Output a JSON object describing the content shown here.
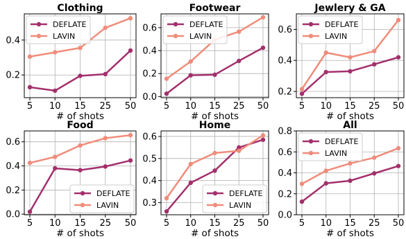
{
  "colors": {
    "DEFLATE": "#a3306c",
    "LAVIN": "#f08c7a"
  },
  "chart_data": [
    {
      "type": "line",
      "title": "Clothing",
      "xlabel": "# of shots",
      "x": [
        "5",
        "10",
        "15",
        "25",
        "50"
      ],
      "ylim": [
        0.07,
        0.55
      ],
      "yticks": [
        0.2,
        0.4
      ],
      "ytick_labels": [
        "0.2",
        "0.4"
      ],
      "legend": "upper-left",
      "series": [
        {
          "name": "DEFLATE",
          "values": [
            0.13,
            0.11,
            0.195,
            0.205,
            0.34
          ]
        },
        {
          "name": "LAVIN",
          "values": [
            0.305,
            0.33,
            0.355,
            0.47,
            0.525
          ]
        }
      ]
    },
    {
      "type": "line",
      "title": "Footwear",
      "xlabel": "# of shots",
      "x": [
        "5",
        "10",
        "15",
        "25",
        "50"
      ],
      "ylim": [
        -0.01,
        0.72
      ],
      "yticks": [
        0.0,
        0.2,
        0.4,
        0.6
      ],
      "ytick_labels": [
        "0.0",
        "0.2",
        "0.4",
        "0.6"
      ],
      "legend": "upper-left",
      "series": [
        {
          "name": "DEFLATE",
          "values": [
            0.025,
            0.185,
            0.19,
            0.31,
            0.425
          ]
        },
        {
          "name": "LAVIN",
          "values": [
            0.155,
            0.305,
            0.495,
            0.565,
            0.69
          ]
        }
      ]
    },
    {
      "type": "line",
      "title": "Jewlery & GA",
      "xlabel": "# of shots",
      "x": [
        "5",
        "10",
        "15",
        "25",
        "50"
      ],
      "ylim": [
        0.16,
        0.7
      ],
      "yticks": [
        0.2,
        0.4,
        0.6
      ],
      "ytick_labels": [
        "0.2",
        "0.4",
        "0.6"
      ],
      "legend": "upper-left",
      "series": [
        {
          "name": "DEFLATE",
          "values": [
            0.185,
            0.325,
            0.33,
            0.375,
            0.42
          ]
        },
        {
          "name": "LAVIN",
          "values": [
            0.215,
            0.45,
            0.42,
            0.46,
            0.66
          ]
        }
      ]
    },
    {
      "type": "line",
      "title": "Food",
      "xlabel": "# of shots",
      "x": [
        "5",
        "10",
        "15",
        "25",
        "50"
      ],
      "ylim": [
        -0.005,
        0.69
      ],
      "yticks": [
        0.0,
        0.2,
        0.4,
        0.6
      ],
      "ytick_labels": [
        "0.0",
        "0.2",
        "0.4",
        "0.6"
      ],
      "legend": "lower-right",
      "series": [
        {
          "name": "DEFLATE",
          "values": [
            0.02,
            0.38,
            0.365,
            0.395,
            0.445
          ]
        },
        {
          "name": "LAVIN",
          "values": [
            0.425,
            0.475,
            0.57,
            0.63,
            0.655
          ]
        }
      ]
    },
    {
      "type": "line",
      "title": "Home",
      "xlabel": "# of shots",
      "x": [
        "5",
        "10",
        "15",
        "25",
        "50"
      ],
      "ylim": [
        0.245,
        0.625
      ],
      "yticks": [
        0.3,
        0.4,
        0.5,
        0.6
      ],
      "ytick_labels": [
        "0.3",
        "0.4",
        "0.5",
        "0.6"
      ],
      "legend": "lower-right",
      "series": [
        {
          "name": "DEFLATE",
          "values": [
            0.26,
            0.39,
            0.445,
            0.55,
            0.585
          ]
        },
        {
          "name": "LAVIN",
          "values": [
            0.32,
            0.475,
            0.525,
            0.535,
            0.605
          ]
        }
      ]
    },
    {
      "type": "line",
      "title": "All",
      "xlabel": "# of shots",
      "x": [
        "5",
        "10",
        "15",
        "25",
        "50"
      ],
      "ylim": [
        0.0,
        0.8
      ],
      "yticks": [
        0.0,
        0.2,
        0.4,
        0.6,
        0.8
      ],
      "ytick_labels": [
        "0.0",
        "0.2",
        "0.4",
        "0.6",
        "0.8"
      ],
      "legend": "upper-left",
      "series": [
        {
          "name": "DEFLATE",
          "values": [
            0.125,
            0.3,
            0.325,
            0.395,
            0.465
          ]
        },
        {
          "name": "LAVIN",
          "values": [
            0.295,
            0.42,
            0.49,
            0.545,
            0.635
          ]
        }
      ]
    }
  ]
}
